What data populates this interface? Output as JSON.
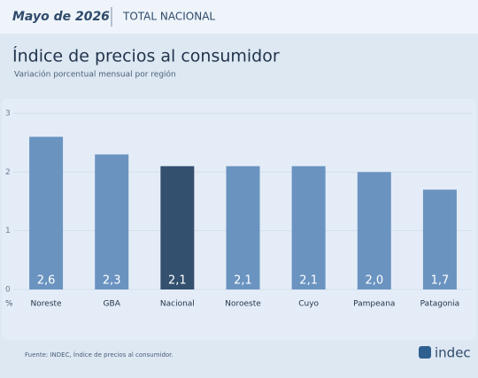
{
  "header": {
    "date": "Mayo de 2026",
    "scope": "TOTAL NACIONAL"
  },
  "chart_data": {
    "type": "bar",
    "title": "Índice de precios al consumidor",
    "subtitle": "Variación porcentual mensual por región",
    "categories": [
      "Noreste",
      "GBA",
      "Nacional",
      "Noroeste",
      "Cuyo",
      "Pampeana",
      "Patagonia"
    ],
    "values": [
      2.6,
      2.3,
      2.1,
      2.1,
      2.1,
      2.0,
      1.7
    ],
    "value_labels": [
      "2,6",
      "2,3",
      "2,1",
      "2,1",
      "2,1",
      "2,0",
      "1,7"
    ],
    "colors": [
      "#6a93c0",
      "#6a93c0",
      "#34506f",
      "#6a93c0",
      "#6a93c0",
      "#6a93c0",
      "#6a93c0"
    ],
    "ylim": [
      0,
      3
    ],
    "yticks": [
      0,
      1,
      2,
      3
    ],
    "y_label": "%",
    "grid": true
  },
  "footer": {
    "source": "Fuente: INDEC, Índice de precios al consumidor.",
    "logo": "indec"
  }
}
